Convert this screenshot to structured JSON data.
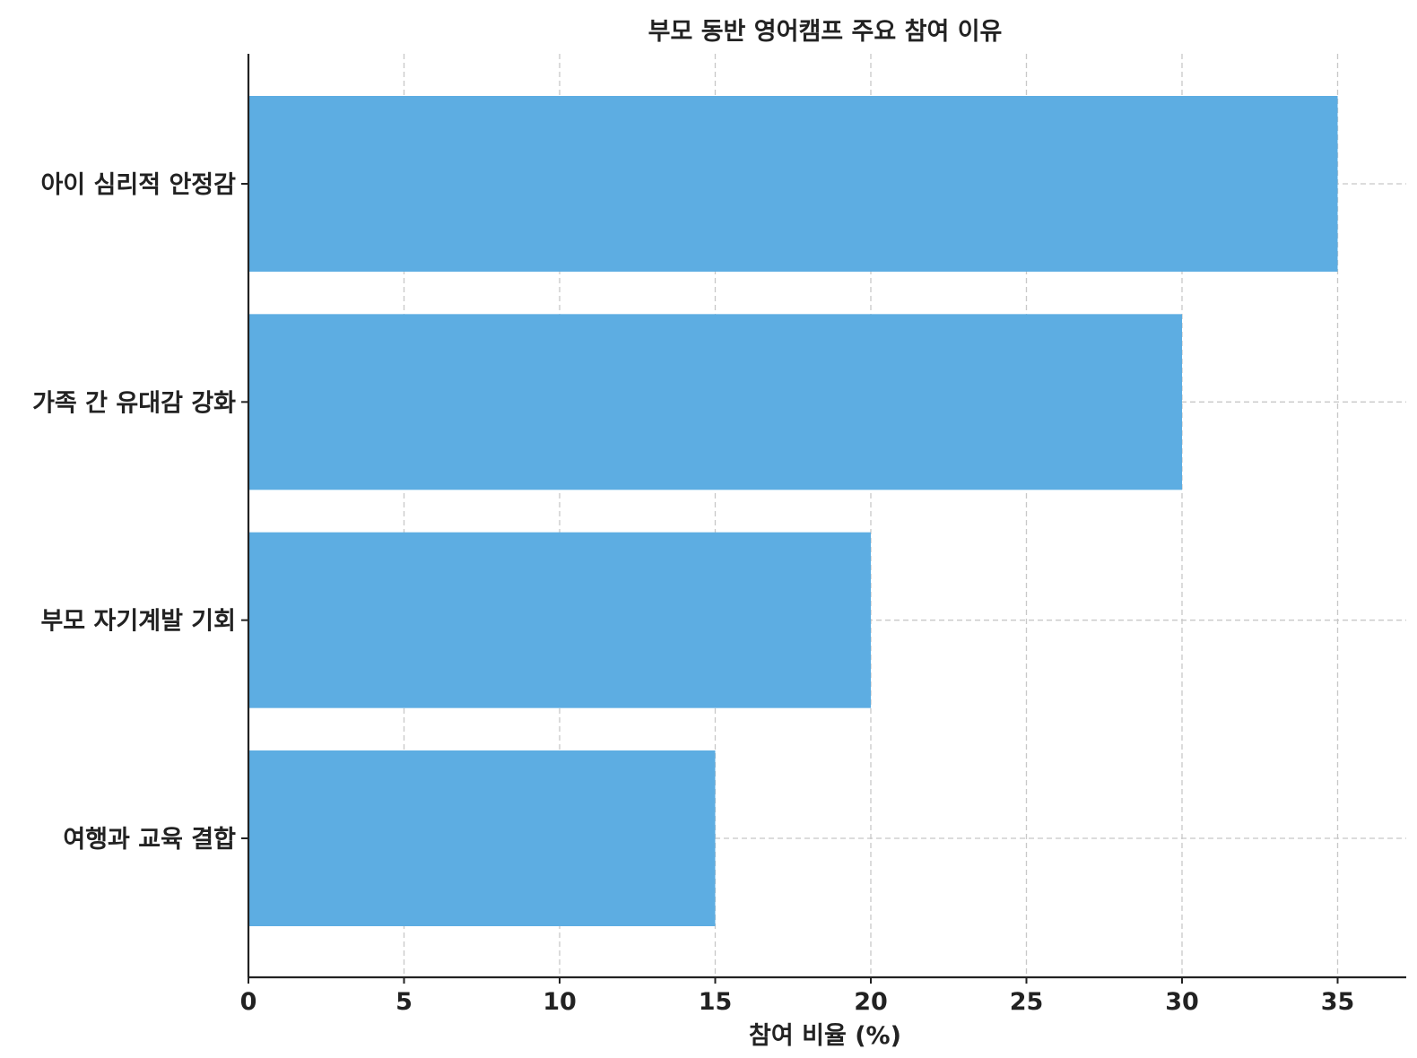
{
  "chart_data": {
    "type": "bar",
    "orientation": "horizontal",
    "title": "부모 동반 영어캠프 주요 참여 이유",
    "xlabel": "참여 비율 (%)",
    "ylabel": "",
    "categories": [
      "여행과 교육 결합",
      "부모 자기계발 기회",
      "가족 간 유대감 강화",
      "아이 심리적 안정감"
    ],
    "values": [
      15,
      20,
      30,
      35
    ],
    "xlim": [
      0,
      36.75
    ],
    "xticks": [
      0,
      5,
      10,
      15,
      20,
      25,
      30,
      35
    ],
    "tick_labels": [
      "0",
      "5",
      "10",
      "15",
      "20",
      "25",
      "30",
      "35"
    ],
    "grid": true,
    "bar_color": "#5DADE2",
    "legend": false
  }
}
